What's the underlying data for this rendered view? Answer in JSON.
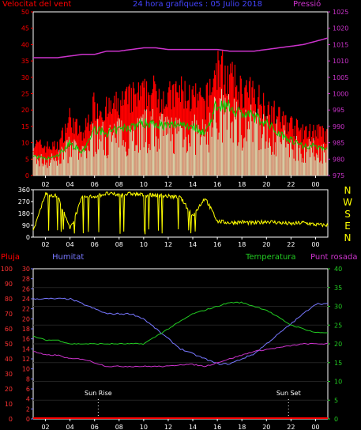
{
  "top": {
    "title": "24 hora grafiques : 05 Julio 2018",
    "left_label": "Velocitat del vent",
    "right_label": "Pressió",
    "left_ticks": [
      "0",
      "5",
      "10",
      "15",
      "20",
      "25",
      "30",
      "35",
      "40",
      "45",
      "50"
    ],
    "right_ticks": [
      "975",
      "980",
      "985",
      "990",
      "995",
      "1000",
      "1005",
      "1010",
      "1015",
      "1020",
      "1025"
    ],
    "x_ticks": [
      "02",
      "04",
      "06",
      "08",
      "10",
      "12",
      "14",
      "16",
      "18",
      "20",
      "22",
      "00"
    ]
  },
  "mid": {
    "left_ticks": [
      "0",
      "90",
      "180",
      "270",
      "360"
    ],
    "compass": [
      "N",
      "W",
      "S",
      "E",
      "N"
    ],
    "x_ticks": [
      "02",
      "04",
      "06",
      "08",
      "10",
      "12",
      "14",
      "16",
      "18",
      "20",
      "22",
      "00"
    ]
  },
  "bottom": {
    "label_rain": "Pluja",
    "label_hum": "Humitat",
    "label_temp": "Temperatura",
    "label_dew": "Punt rosada",
    "ticks_rain": [
      "0",
      "10",
      "20",
      "30",
      "40",
      "50",
      "60",
      "70",
      "80",
      "90",
      "100"
    ],
    "ticks_hum": [
      "0",
      "2",
      "4",
      "6",
      "8",
      "10",
      "12",
      "14",
      "16",
      "18",
      "20",
      "22",
      "24",
      "26",
      "28",
      "30"
    ],
    "ticks_temp": [
      "0",
      "5",
      "10",
      "15",
      "20",
      "25",
      "30",
      "35",
      "40"
    ],
    "x_ticks": [
      "02",
      "04",
      "06",
      "08",
      "10",
      "12",
      "14",
      "16",
      "18",
      "20",
      "22",
      "00"
    ],
    "sun_rise": "Sun Rise",
    "sun_set": "Sun Set"
  },
  "colors": {
    "wind_gust": "#ff0000",
    "wind_avg": "#00cc00",
    "wind_speed": "#ccffcc",
    "pressure": "#cc33cc",
    "direction": "#ffff00",
    "humidity": "#7777ff",
    "temperature": "#22cc22",
    "dewpoint": "#cc33cc",
    "rain": "#ff0000"
  },
  "chart_data": [
    {
      "type": "line",
      "title": "24 hora grafiques : 05 Julio 2018",
      "x_unit": "hour",
      "xlim": [
        1,
        25
      ],
      "series": [
        {
          "name": "Velocitat del vent",
          "axis": "left",
          "ylim": [
            0,
            50
          ],
          "x": [
            1,
            2,
            3,
            4,
            5,
            6,
            7,
            8,
            9,
            10,
            11,
            12,
            13,
            14,
            15,
            16,
            17,
            18,
            19,
            20,
            21,
            22,
            23,
            24,
            25
          ],
          "values": [
            10,
            9,
            9,
            18,
            12,
            22,
            20,
            22,
            24,
            25,
            26,
            24,
            26,
            24,
            22,
            34,
            30,
            26,
            25,
            22,
            18,
            16,
            13,
            14,
            12
          ]
        },
        {
          "name": "",
          "axis": "left",
          "ylim": [
            0,
            50
          ],
          "x": [
            1,
            2,
            3,
            4,
            5,
            6,
            7,
            8,
            9,
            10,
            11,
            12,
            13,
            14,
            15,
            16,
            17,
            18,
            19,
            20,
            21,
            22,
            23,
            24,
            25
          ],
          "values": [
            6,
            5,
            6,
            10,
            7,
            14,
            13,
            14,
            15,
            16,
            16,
            15,
            16,
            15,
            13,
            22,
            21,
            19,
            18,
            16,
            13,
            11,
            9,
            9,
            8
          ]
        },
        {
          "name": "Pressió",
          "axis": "right",
          "ylim": [
            975,
            1025
          ],
          "x": [
            1,
            2,
            3,
            4,
            5,
            6,
            7,
            8,
            9,
            10,
            11,
            12,
            13,
            14,
            15,
            16,
            17,
            18,
            19,
            20,
            21,
            22,
            23,
            24,
            25
          ],
          "values": [
            1011,
            1011,
            1011,
            1011.5,
            1012,
            1012,
            1013,
            1013,
            1013.5,
            1014,
            1014,
            1013.5,
            1013.5,
            1013.5,
            1013.5,
            1013.5,
            1013,
            1013,
            1013,
            1013.5,
            1014,
            1014.5,
            1015,
            1016,
            1017
          ]
        }
      ]
    },
    {
      "type": "line",
      "x_unit": "hour",
      "xlim": [
        1,
        25
      ],
      "ylim": [
        0,
        360
      ],
      "series": [
        {
          "name": "",
          "x": [
            1,
            2,
            3,
            4,
            5,
            6,
            7,
            8,
            9,
            10,
            11,
            12,
            13,
            14,
            15,
            16,
            17,
            18,
            19,
            20,
            21,
            22,
            23,
            24,
            25
          ],
          "values": [
            40,
            330,
            310,
            60,
            300,
            310,
            330,
            320,
            330,
            320,
            320,
            310,
            300,
            160,
            300,
            120,
            110,
            115,
            105,
            120,
            110,
            100,
            110,
            95,
            90
          ]
        }
      ]
    },
    {
      "type": "line",
      "x_unit": "hour",
      "xlim": [
        1,
        25
      ],
      "series": [
        {
          "name": "Pluja",
          "axis": "rain",
          "ylim": [
            0,
            100
          ],
          "x": [
            1,
            25
          ],
          "values": [
            0,
            0
          ]
        },
        {
          "name": "Humitat",
          "axis": "hum",
          "ylim": [
            0,
            30
          ],
          "x": [
            1,
            2,
            3,
            4,
            5,
            6,
            7,
            8,
            9,
            10,
            11,
            12,
            13,
            14,
            15,
            16,
            17,
            18,
            19,
            20,
            21,
            22,
            23,
            24,
            25
          ],
          "values": [
            24,
            24,
            24,
            24,
            23,
            22,
            21,
            21,
            21,
            20,
            18,
            16,
            14,
            13,
            12,
            11,
            11,
            12,
            13,
            15,
            17,
            19,
            21,
            23,
            23
          ]
        },
        {
          "name": "Temperatura",
          "axis": "temp",
          "ylim": [
            0,
            40
          ],
          "x": [
            1,
            2,
            3,
            4,
            5,
            6,
            7,
            8,
            9,
            10,
            11,
            12,
            13,
            14,
            15,
            16,
            17,
            18,
            19,
            20,
            21,
            22,
            23,
            24,
            25
          ],
          "values": [
            22,
            21,
            21,
            20,
            20,
            20,
            20,
            20,
            20,
            20,
            22,
            24,
            26,
            28,
            29,
            30,
            31,
            31,
            30,
            29,
            27,
            25,
            24,
            23,
            23
          ]
        },
        {
          "name": "Punt rosada",
          "axis": "temp",
          "ylim": [
            0,
            40
          ],
          "x": [
            1,
            2,
            3,
            4,
            5,
            6,
            7,
            8,
            9,
            10,
            11,
            12,
            13,
            14,
            15,
            16,
            17,
            18,
            19,
            20,
            21,
            22,
            23,
            24,
            25
          ],
          "values": [
            18,
            17,
            17,
            16,
            16,
            15,
            14,
            14,
            14,
            14,
            14,
            14,
            14.5,
            14.5,
            14,
            15,
            16,
            17,
            18,
            18.5,
            19,
            19.5,
            20,
            20,
            20
          ]
        }
      ],
      "annotations": [
        "Sun Rise",
        "Sun Set"
      ]
    }
  ]
}
